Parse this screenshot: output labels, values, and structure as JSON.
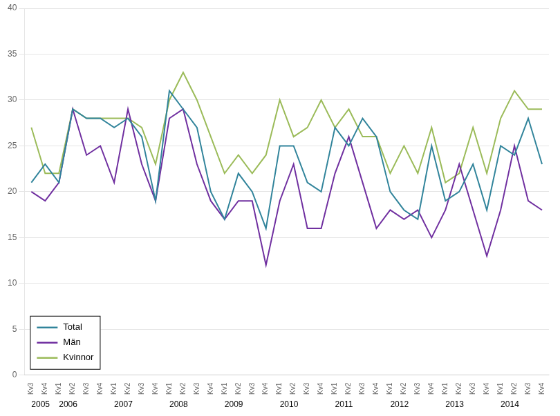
{
  "chart_data": {
    "type": "line",
    "categories": [
      "Kv3",
      "Kv4",
      "Kv1",
      "Kv2",
      "Kv3",
      "Kv4",
      "Kv1",
      "Kv2",
      "Kv3",
      "Kv4",
      "Kv1",
      "Kv2",
      "Kv3",
      "Kv4",
      "Kv1",
      "Kv2",
      "Kv3",
      "Kv4",
      "Kv1",
      "Kv2",
      "Kv3",
      "Kv4",
      "Kv1",
      "Kv2",
      "Kv3",
      "Kv4",
      "Kv1",
      "Kv2",
      "Kv3",
      "Kv4",
      "Kv1",
      "Kv2",
      "Kv3",
      "Kv4",
      "Kv1",
      "Kv2",
      "Kv3",
      "Kv4"
    ],
    "series": [
      {
        "name": "Total",
        "color": "#31849B",
        "values": [
          21,
          23,
          21,
          29,
          28,
          28,
          27,
          28,
          26,
          19,
          31,
          29,
          27,
          20,
          17,
          22,
          20,
          16,
          25,
          25,
          21,
          20,
          27,
          25,
          28,
          26,
          20,
          18,
          17,
          25,
          19,
          20,
          23,
          18,
          25,
          24,
          28,
          23
        ]
      },
      {
        "name": "Män",
        "color": "#7030A0",
        "values": [
          20,
          19,
          21,
          29,
          24,
          25,
          21,
          29,
          23,
          19,
          28,
          29,
          23,
          19,
          17,
          19,
          19,
          12,
          19,
          23,
          16,
          16,
          22,
          26,
          21,
          16,
          18,
          17,
          18,
          15,
          18,
          23,
          18,
          13,
          18,
          25,
          19,
          18
        ]
      },
      {
        "name": "Kvinnor",
        "color": "#9BBB59",
        "values": [
          27,
          22,
          22,
          29,
          28,
          28,
          28,
          28,
          27,
          23,
          30,
          33,
          30,
          26,
          22,
          24,
          22,
          24,
          30,
          26,
          27,
          30,
          27,
          29,
          26,
          26,
          22,
          25,
          22,
          27,
          21,
          22,
          27,
          22,
          28,
          31,
          29,
          29
        ]
      }
    ],
    "annotations": [
      {
        "text": "2005",
        "x": 0
      },
      {
        "text": "2006",
        "x": 2
      },
      {
        "text": "2007",
        "x": 6
      },
      {
        "text": "2008",
        "x": 10
      },
      {
        "text": "2009",
        "x": 14
      },
      {
        "text": "2010",
        "x": 18
      },
      {
        "text": "2011",
        "x": 22
      },
      {
        "text": "2012",
        "x": 26
      },
      {
        "text": "2013",
        "x": 30
      },
      {
        "text": "2014",
        "x": 34
      }
    ],
    "ylim": [
      0,
      40
    ],
    "yticks": [
      0,
      5,
      10,
      15,
      20,
      25,
      30,
      35,
      40
    ],
    "grid": true,
    "legend": "lower left"
  }
}
